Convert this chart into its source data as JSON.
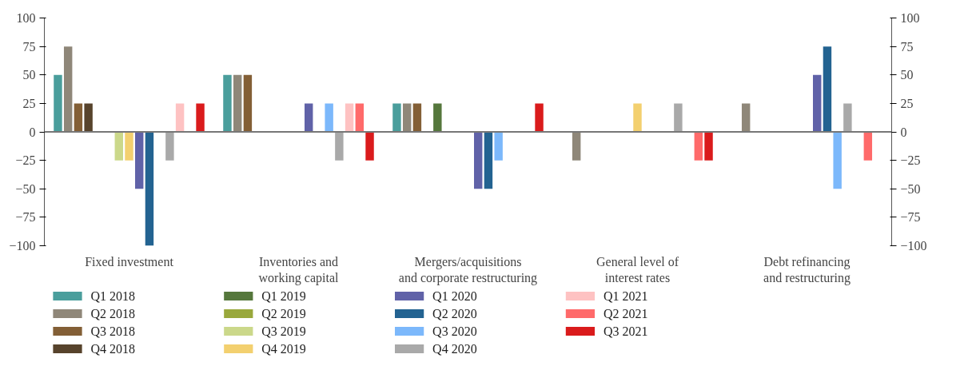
{
  "chart_data": {
    "type": "bar",
    "categories": [
      "Fixed investment",
      "Inventories and\nworking capital",
      "Mergers/acquisitions\nand corporate restructuring",
      "General level of\ninterest rates",
      "Debt refinancing\nand restructuring"
    ],
    "series": [
      {
        "name": "Q1 2018",
        "color": "#4a9e9c",
        "values": [
          50,
          50,
          25,
          0,
          0
        ]
      },
      {
        "name": "Q2 2018",
        "color": "#8f8779",
        "values": [
          75,
          50,
          25,
          -25,
          25
        ]
      },
      {
        "name": "Q3 2018",
        "color": "#835f36",
        "values": [
          25,
          50,
          25,
          0,
          0
        ]
      },
      {
        "name": "Q4 2018",
        "color": "#57432c",
        "values": [
          25,
          0,
          0,
          0,
          0
        ]
      },
      {
        "name": "Q1 2019",
        "color": "#55773c",
        "values": [
          0,
          0,
          25,
          0,
          0
        ]
      },
      {
        "name": "Q2 2019",
        "color": "#99a83c",
        "values": [
          0,
          0,
          0,
          0,
          0
        ]
      },
      {
        "name": "Q3 2019",
        "color": "#cbd88a",
        "values": [
          -25,
          0,
          0,
          0,
          0
        ]
      },
      {
        "name": "Q4 2019",
        "color": "#f3d06f",
        "values": [
          -25,
          0,
          0,
          25,
          0
        ]
      },
      {
        "name": "Q1 2020",
        "color": "#6062a8",
        "values": [
          -50,
          25,
          -50,
          0,
          50
        ]
      },
      {
        "name": "Q2 2020",
        "color": "#236391",
        "values": [
          -100,
          0,
          -50,
          0,
          75
        ]
      },
      {
        "name": "Q3 2020",
        "color": "#7cb8fb",
        "values": [
          0,
          25,
          -25,
          0,
          -50
        ]
      },
      {
        "name": "Q4 2020",
        "color": "#a9a9a9",
        "values": [
          -25,
          -25,
          0,
          25,
          25
        ]
      },
      {
        "name": "Q1 2021",
        "color": "#fec2c2",
        "values": [
          25,
          25,
          0,
          0,
          0
        ]
      },
      {
        "name": "Q2 2021",
        "color": "#ff6a6a",
        "values": [
          0,
          25,
          0,
          -25,
          -25
        ]
      },
      {
        "name": "Q3 2021",
        "color": "#da1b1c",
        "values": [
          25,
          -25,
          25,
          -25,
          0
        ]
      }
    ],
    "ylim": [
      -100,
      100
    ],
    "y2lim": [
      -100,
      100
    ],
    "yticks": [
      -100,
      -75,
      -50,
      -25,
      0,
      25,
      50,
      75,
      100
    ],
    "y2ticks": [
      -100,
      -75,
      -50,
      -25,
      0,
      25,
      50,
      75,
      100
    ],
    "legend": "bottom"
  }
}
